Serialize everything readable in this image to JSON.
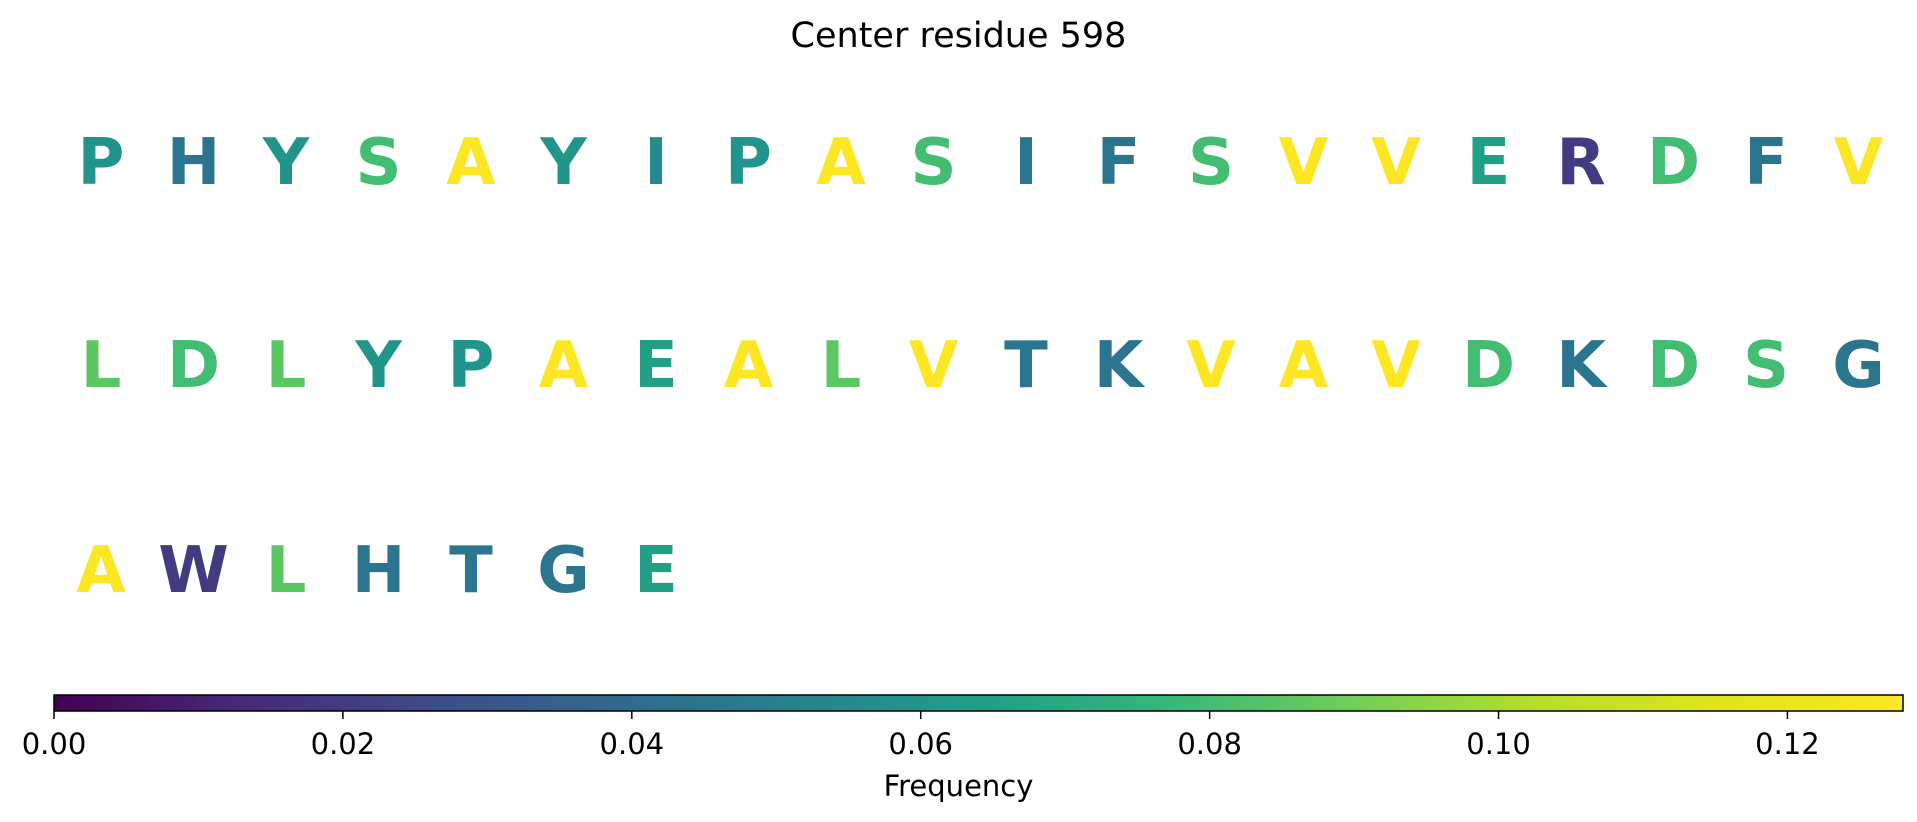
{
  "chart_data": {
    "type": "sequence-colormap",
    "title": "Center residue 598",
    "colorbar": {
      "label": "Frequency",
      "range": [
        0,
        0.128
      ],
      "ticks": [
        "0.00",
        "0.02",
        "0.04",
        "0.06",
        "0.08",
        "0.10",
        "0.12"
      ],
      "tick_values": [
        0,
        0.02,
        0.04,
        0.06,
        0.08,
        0.1,
        0.12
      ],
      "colormap": "viridis"
    },
    "rows": [
      {
        "residues": [
          "P",
          "H",
          "Y",
          "S",
          "A",
          "Y",
          "I",
          "P",
          "A",
          "S",
          "I",
          "F",
          "S",
          "V",
          "V",
          "E",
          "R",
          "D",
          "F",
          "V"
        ],
        "values": [
          0.06,
          0.045,
          0.06,
          0.08,
          0.128,
          0.06,
          0.055,
          0.06,
          0.128,
          0.08,
          0.045,
          0.045,
          0.08,
          0.128,
          0.128,
          0.065,
          0.02,
          0.08,
          0.045,
          0.128
        ]
      },
      {
        "residues": [
          "L",
          "D",
          "L",
          "Y",
          "P",
          "A",
          "E",
          "A",
          "L",
          "V",
          "T",
          "K",
          "V",
          "A",
          "V",
          "D",
          "K",
          "D",
          "S",
          "G"
        ],
        "values": [
          0.085,
          0.08,
          0.085,
          0.06,
          0.06,
          0.128,
          0.065,
          0.128,
          0.085,
          0.128,
          0.045,
          0.045,
          0.128,
          0.128,
          0.128,
          0.08,
          0.045,
          0.08,
          0.08,
          0.045
        ]
      },
      {
        "residues": [
          "A",
          "W",
          "L",
          "H",
          "T",
          "G",
          "E"
        ],
        "values": [
          0.128,
          0.02,
          0.085,
          0.045,
          0.045,
          0.045,
          0.065
        ]
      }
    ]
  }
}
